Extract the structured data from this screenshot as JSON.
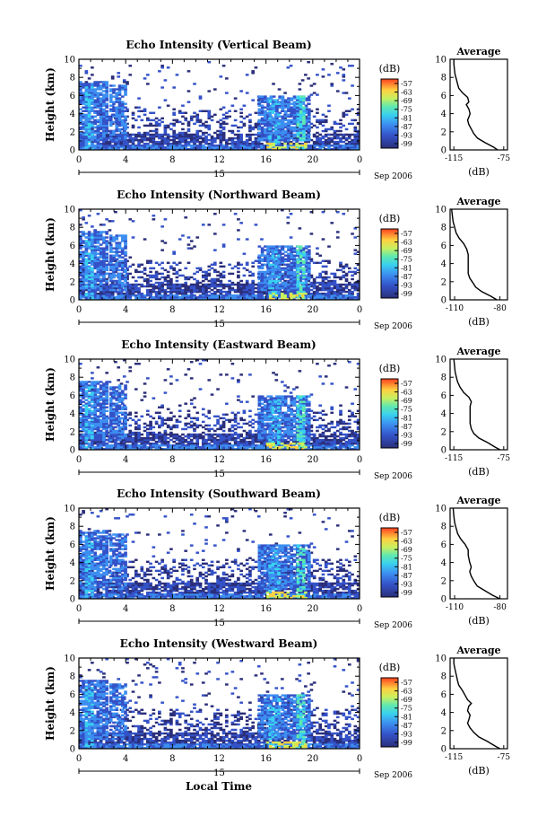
{
  "figure": {
    "xlabel_bottom": "Local Time"
  },
  "chart_data": [
    {
      "type": "heatmap",
      "title": "Echo Intensity (Vertical Beam)",
      "ylabel": "Height (km)",
      "x_ticks": [
        "0",
        "4",
        "8",
        "12",
        "16",
        "20",
        "0"
      ],
      "y_ticks": [
        "0",
        "2",
        "4",
        "6",
        "8",
        "10"
      ],
      "xlim": [
        0,
        24
      ],
      "ylim": [
        0,
        10
      ],
      "date_day": "15",
      "date_label": "Sep 2006",
      "colorbar": {
        "label": "(dB)",
        "ticks": [
          "-57",
          "-63",
          "-69",
          "-75",
          "-81",
          "-87",
          "-93",
          "-99"
        ]
      },
      "profile": {
        "title": "Average",
        "xlabel": "(dB)",
        "x_ticks": [
          "-115",
          "-75"
        ],
        "xlim": [
          -118,
          -72
        ],
        "y_ticks": [
          "0",
          "2",
          "4",
          "6",
          "8",
          "10"
        ],
        "points": [
          [
            -80,
            0
          ],
          [
            -83,
            0.3
          ],
          [
            -90,
            0.8
          ],
          [
            -96,
            1.3
          ],
          [
            -99,
            1.8
          ],
          [
            -101,
            2.3
          ],
          [
            -103,
            2.8
          ],
          [
            -104,
            3.3
          ],
          [
            -103,
            3.6
          ],
          [
            -102,
            4.0
          ],
          [
            -103,
            4.5
          ],
          [
            -105,
            5.0
          ],
          [
            -103,
            5.3
          ],
          [
            -104,
            5.8
          ],
          [
            -108,
            6.3
          ],
          [
            -111,
            6.8
          ],
          [
            -112,
            7.3
          ],
          [
            -113,
            7.8
          ],
          [
            -114,
            8.3
          ],
          [
            -114.5,
            8.8
          ],
          [
            -115,
            9.5
          ],
          [
            -115,
            10
          ]
        ]
      }
    },
    {
      "type": "heatmap",
      "title": "Echo Intensity (Northward Beam)",
      "ylabel": "Height (km)",
      "x_ticks": [
        "0",
        "4",
        "8",
        "12",
        "16",
        "20",
        "0"
      ],
      "y_ticks": [
        "0",
        "2",
        "4",
        "6",
        "8",
        "10"
      ],
      "xlim": [
        0,
        24
      ],
      "ylim": [
        0,
        10
      ],
      "date_day": "15",
      "date_label": "Sep 2006",
      "colorbar": {
        "label": "(dB)",
        "ticks": [
          "-57",
          "-63",
          "-69",
          "-75",
          "-81",
          "-87",
          "-93",
          "-99"
        ]
      },
      "profile": {
        "title": "Average",
        "xlabel": "(dB)",
        "x_ticks": [
          "-110",
          "-80"
        ],
        "xlim": [
          -113,
          -75
        ],
        "y_ticks": [
          "0",
          "2",
          "4",
          "6",
          "8",
          "10"
        ],
        "points": [
          [
            -82,
            0
          ],
          [
            -86,
            0.4
          ],
          [
            -92,
            0.9
          ],
          [
            -96,
            1.4
          ],
          [
            -98,
            1.9
          ],
          [
            -100,
            2.4
          ],
          [
            -101,
            2.9
          ],
          [
            -101,
            3.5
          ],
          [
            -101,
            4.2
          ],
          [
            -101,
            5.0
          ],
          [
            -102,
            5.6
          ],
          [
            -104,
            6.2
          ],
          [
            -107,
            6.8
          ],
          [
            -109,
            7.4
          ],
          [
            -110,
            8.0
          ],
          [
            -111,
            8.6
          ],
          [
            -111.5,
            9.3
          ],
          [
            -112,
            10
          ]
        ]
      }
    },
    {
      "type": "heatmap",
      "title": "Echo Intensity (Eastward Beam)",
      "ylabel": "Height (km)",
      "x_ticks": [
        "0",
        "4",
        "8",
        "12",
        "16",
        "20",
        "0"
      ],
      "y_ticks": [
        "0",
        "2",
        "4",
        "6",
        "8",
        "10"
      ],
      "xlim": [
        0,
        24
      ],
      "ylim": [
        0,
        10
      ],
      "date_day": "15",
      "date_label": "Sep 2006",
      "colorbar": {
        "label": "(dB)",
        "ticks": [
          "-57",
          "-63",
          "-69",
          "-75",
          "-81",
          "-87",
          "-93",
          "-99"
        ]
      },
      "profile": {
        "title": "Average",
        "xlabel": "(dB)",
        "x_ticks": [
          "-115",
          "-75"
        ],
        "xlim": [
          -118,
          -72
        ],
        "y_ticks": [
          "0",
          "2",
          "4",
          "6",
          "8",
          "10"
        ],
        "points": [
          [
            -78,
            0
          ],
          [
            -82,
            0.3
          ],
          [
            -88,
            0.8
          ],
          [
            -95,
            1.3
          ],
          [
            -99,
            1.8
          ],
          [
            -101,
            2.3
          ],
          [
            -102,
            2.9
          ],
          [
            -102,
            3.5
          ],
          [
            -102,
            4.1
          ],
          [
            -102,
            4.8
          ],
          [
            -101,
            5.3
          ],
          [
            -103,
            5.8
          ],
          [
            -107,
            6.3
          ],
          [
            -110,
            6.9
          ],
          [
            -112,
            7.5
          ],
          [
            -113,
            8.0
          ],
          [
            -114,
            8.6
          ],
          [
            -114.5,
            9.3
          ],
          [
            -115,
            10
          ]
        ]
      }
    },
    {
      "type": "heatmap",
      "title": "Echo Intensity (Southward Beam)",
      "ylabel": "Height (km)",
      "x_ticks": [
        "0",
        "4",
        "8",
        "12",
        "16",
        "20",
        "0"
      ],
      "y_ticks": [
        "0",
        "2",
        "4",
        "6",
        "8",
        "10"
      ],
      "xlim": [
        0,
        24
      ],
      "ylim": [
        0,
        10
      ],
      "date_day": "15",
      "date_label": "Sep 2006",
      "colorbar": {
        "label": "(dB)",
        "ticks": [
          "-57",
          "-63",
          "-69",
          "-75",
          "-81",
          "-87",
          "-93",
          "-99"
        ]
      },
      "profile": {
        "title": "Average",
        "xlabel": "(dB)",
        "x_ticks": [
          "-110",
          "-80"
        ],
        "xlim": [
          -113,
          -75
        ],
        "y_ticks": [
          "0",
          "2",
          "4",
          "6",
          "8",
          "10"
        ],
        "points": [
          [
            -80,
            0
          ],
          [
            -85,
            0.4
          ],
          [
            -90,
            0.9
          ],
          [
            -95,
            1.4
          ],
          [
            -97,
            1.9
          ],
          [
            -99,
            2.5
          ],
          [
            -100,
            3.0
          ],
          [
            -99,
            3.5
          ],
          [
            -100,
            4.0
          ],
          [
            -101,
            4.8
          ],
          [
            -101,
            5.4
          ],
          [
            -103,
            6.0
          ],
          [
            -106,
            6.6
          ],
          [
            -108,
            7.2
          ],
          [
            -109,
            7.8
          ],
          [
            -110,
            8.4
          ],
          [
            -110.5,
            9.1
          ],
          [
            -111,
            10
          ]
        ]
      }
    },
    {
      "type": "heatmap",
      "title": "Echo Intensity (Westward Beam)",
      "ylabel": "Height (km)",
      "x_ticks": [
        "0",
        "4",
        "8",
        "12",
        "16",
        "20",
        "0"
      ],
      "y_ticks": [
        "0",
        "2",
        "4",
        "6",
        "8",
        "10"
      ],
      "xlim": [
        0,
        24
      ],
      "ylim": [
        0,
        10
      ],
      "date_day": "15",
      "date_label": "Sep 2006",
      "colorbar": {
        "label": "(dB)",
        "ticks": [
          "-57",
          "-63",
          "-69",
          "-75",
          "-81",
          "-87",
          "-93",
          "-99"
        ]
      },
      "profile": {
        "title": "Average",
        "xlabel": "(dB)",
        "x_ticks": [
          "-115",
          "-75"
        ],
        "xlim": [
          -118,
          -72
        ],
        "y_ticks": [
          "0",
          "2",
          "4",
          "6",
          "8",
          "10"
        ],
        "points": [
          [
            -78,
            0
          ],
          [
            -82,
            0.3
          ],
          [
            -88,
            0.8
          ],
          [
            -95,
            1.3
          ],
          [
            -99,
            1.8
          ],
          [
            -102,
            2.3
          ],
          [
            -104,
            2.8
          ],
          [
            -103,
            3.2
          ],
          [
            -102,
            3.7
          ],
          [
            -104,
            4.2
          ],
          [
            -103,
            4.7
          ],
          [
            -101,
            5.0
          ],
          [
            -104,
            5.4
          ],
          [
            -106,
            5.9
          ],
          [
            -108,
            6.4
          ],
          [
            -111,
            7.0
          ],
          [
            -112,
            7.5
          ],
          [
            -113,
            8.1
          ],
          [
            -114,
            8.7
          ],
          [
            -115,
            9.4
          ],
          [
            -115,
            10
          ]
        ]
      }
    }
  ]
}
